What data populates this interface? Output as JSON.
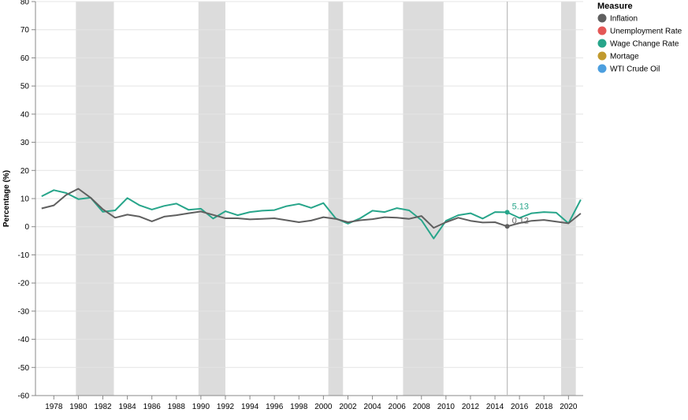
{
  "chart_data": {
    "type": "line",
    "title": "",
    "ylabel": "Percentage (%)",
    "xlabel": "",
    "xlim": [
      1976.5,
      2021.2
    ],
    "ylim": [
      -60,
      80
    ],
    "y_ticks": [
      80,
      70,
      60,
      50,
      40,
      30,
      20,
      10,
      0,
      -10,
      -20,
      -30,
      -40,
      -50,
      -60
    ],
    "x_ticks": [
      1978,
      1980,
      1982,
      1984,
      1986,
      1988,
      1990,
      1992,
      1994,
      1996,
      1998,
      2000,
      2002,
      2004,
      2006,
      2008,
      2010,
      2012,
      2014,
      2016,
      2018,
      2020
    ],
    "grid": true,
    "recessions": [
      {
        "start": 1979.8,
        "end": 1982.9
      },
      {
        "start": 1989.8,
        "end": 1992.0
      },
      {
        "start": 2000.4,
        "end": 2001.6
      },
      {
        "start": 2006.5,
        "end": 2009.8
      },
      {
        "start": 2019.4,
        "end": 2020.6
      }
    ],
    "series": [
      {
        "name": "Wage Change Rate",
        "color": "#27a58a",
        "x": [
          1977,
          1978,
          1979,
          1980,
          1981,
          1982,
          1983,
          1984,
          1985,
          1986,
          1987,
          1988,
          1989,
          1990,
          1991,
          1992,
          1993,
          1994,
          1995,
          1996,
          1997,
          1998,
          1999,
          2000,
          2001,
          2002,
          2003,
          2004,
          2005,
          2006,
          2007,
          2008,
          2009,
          2010,
          2011,
          2012,
          2013,
          2014,
          2015,
          2016,
          2017,
          2018,
          2019,
          2020,
          2021
        ],
        "values": [
          10.8,
          13.0,
          12.0,
          9.8,
          10.3,
          5.3,
          5.8,
          10.2,
          7.6,
          6.1,
          7.4,
          8.2,
          6.0,
          6.4,
          2.9,
          5.5,
          4.1,
          5.2,
          5.7,
          5.9,
          7.3,
          8.1,
          6.7,
          8.4,
          3.0,
          1.1,
          3.0,
          5.7,
          5.2,
          6.6,
          5.8,
          2.3,
          -4.2,
          2.1,
          4.1,
          4.8,
          2.9,
          5.2,
          5.13,
          3.1,
          4.8,
          5.2,
          5.0,
          1.2,
          9.6
        ]
      },
      {
        "name": "Inflation",
        "color": "#5f5f5f",
        "x": [
          1977,
          1978,
          1979,
          1980,
          1981,
          1982,
          1983,
          1984,
          1985,
          1986,
          1987,
          1988,
          1989,
          1990,
          1991,
          1992,
          1993,
          1994,
          1995,
          1996,
          1997,
          1998,
          1999,
          2000,
          2001,
          2002,
          2003,
          2004,
          2005,
          2006,
          2007,
          2008,
          2009,
          2010,
          2011,
          2012,
          2013,
          2014,
          2015,
          2016,
          2017,
          2018,
          2019,
          2020,
          2021
        ],
        "values": [
          6.5,
          7.6,
          11.3,
          13.5,
          10.3,
          6.2,
          3.2,
          4.3,
          3.6,
          1.9,
          3.6,
          4.1,
          4.8,
          5.4,
          4.2,
          3.0,
          3.0,
          2.6,
          2.8,
          3.0,
          2.3,
          1.6,
          2.2,
          3.4,
          2.8,
          1.6,
          2.3,
          2.7,
          3.4,
          3.2,
          2.8,
          3.8,
          -0.4,
          1.6,
          3.2,
          2.1,
          1.5,
          1.6,
          0.12,
          1.3,
          2.1,
          2.4,
          1.8,
          1.2,
          4.7
        ]
      }
    ],
    "hover": {
      "x": 2015,
      "labels": [
        {
          "series": "Wage Change Rate",
          "value": 5.13,
          "text": "5.13"
        },
        {
          "series": "Inflation",
          "value": 0.12,
          "text": "0.12"
        }
      ]
    },
    "legend": {
      "title": "Measure",
      "position": "top-right",
      "items": [
        {
          "label": "Inflation",
          "color": "#5f5f5f"
        },
        {
          "label": "Unemployment Rate",
          "color": "#e45756"
        },
        {
          "label": "Wage Change Rate",
          "color": "#27a58a"
        },
        {
          "label": "Mortage",
          "color": "#c19a2e"
        },
        {
          "label": "WTI Crude Oil",
          "color": "#4c9fdf"
        }
      ]
    }
  }
}
